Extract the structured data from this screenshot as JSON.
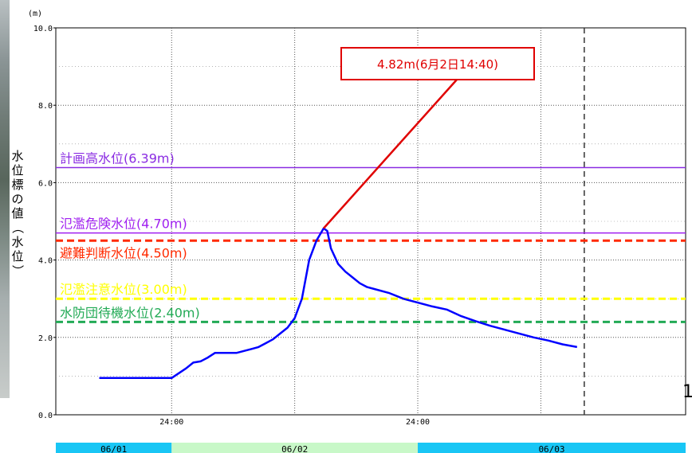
{
  "chart_data": {
    "type": "line",
    "unit_label": "(m)",
    "ylabel": "水位標の値（水位）",
    "ylim": [
      0,
      10
    ],
    "y_ticks": [
      "0.0",
      "2.0",
      "4.0",
      "6.0",
      "8.0",
      "10.0"
    ],
    "x_range_hours": [
      -16,
      56
    ],
    "x_ticks": [
      {
        "hour": 0,
        "label": "24:00"
      },
      {
        "hour": 34,
        "label": "24:00"
      }
    ],
    "x_grid_hours": [
      0,
      17,
      34,
      51
    ],
    "current_time_hour": 57,
    "series": [
      {
        "name": "",
        "color": "#0000ff",
        "points": [
          [
            -10,
            0.95
          ],
          [
            0,
            0.95
          ],
          [
            2,
            1.2
          ],
          [
            3,
            1.35
          ],
          [
            4,
            1.38
          ],
          [
            5,
            1.48
          ],
          [
            6,
            1.6
          ],
          [
            7,
            1.6
          ],
          [
            8,
            1.6
          ],
          [
            9,
            1.6
          ],
          [
            10,
            1.65
          ],
          [
            11,
            1.7
          ],
          [
            12,
            1.75
          ],
          [
            13,
            1.85
          ],
          [
            14,
            1.95
          ],
          [
            15,
            2.1
          ],
          [
            16,
            2.25
          ],
          [
            17,
            2.5
          ],
          [
            18,
            3.0
          ],
          [
            19,
            4.0
          ],
          [
            20,
            4.5
          ],
          [
            21,
            4.82
          ],
          [
            21.5,
            4.75
          ],
          [
            22,
            4.3
          ],
          [
            23,
            3.9
          ],
          [
            24,
            3.7
          ],
          [
            25,
            3.55
          ],
          [
            26,
            3.4
          ],
          [
            27,
            3.3
          ],
          [
            28,
            3.25
          ],
          [
            30,
            3.15
          ],
          [
            32,
            3.0
          ],
          [
            34,
            2.9
          ],
          [
            36,
            2.8
          ],
          [
            38,
            2.72
          ],
          [
            40,
            2.55
          ],
          [
            42,
            2.42
          ],
          [
            44,
            2.3
          ],
          [
            46,
            2.2
          ],
          [
            48,
            2.1
          ],
          [
            50,
            2.0
          ],
          [
            52,
            1.92
          ],
          [
            54,
            1.82
          ],
          [
            56,
            1.75
          ]
        ]
      }
    ],
    "reference_lines": [
      {
        "label": "計画高水位(6.39m)",
        "value": 6.39,
        "color": "#8a2be2",
        "style": "solid"
      },
      {
        "label": "氾濫危険水位(4.70m)",
        "value": 4.7,
        "color": "#a020f0",
        "style": "solid"
      },
      {
        "label": "避難判断水位(4.50m)",
        "value": 4.5,
        "color": "#ff2a00",
        "style": "dashed"
      },
      {
        "label": "氾濫注意水位(3.00m)",
        "value": 3.0,
        "color": "#ffff00",
        "style": "dashed"
      },
      {
        "label": "水防団待機水位(2.40m)",
        "value": 2.4,
        "color": "#22aa55",
        "style": "dashed"
      }
    ],
    "peak_annotation": {
      "text": "4.82m(6月2日14:40)",
      "hour": 21,
      "value": 4.82,
      "color": "#e00000"
    },
    "date_bar": [
      {
        "label": "06/01",
        "color": "#19c6f5",
        "start_hour": -16,
        "end_hour": 0
      },
      {
        "label": "06/02",
        "color": "#c8f8c8",
        "start_hour": 0,
        "end_hour": 34
      },
      {
        "label": "06/03",
        "color": "#19c6f5",
        "start_hour": 34,
        "end_hour": 56
      }
    ],
    "edge_fragment": "1"
  }
}
